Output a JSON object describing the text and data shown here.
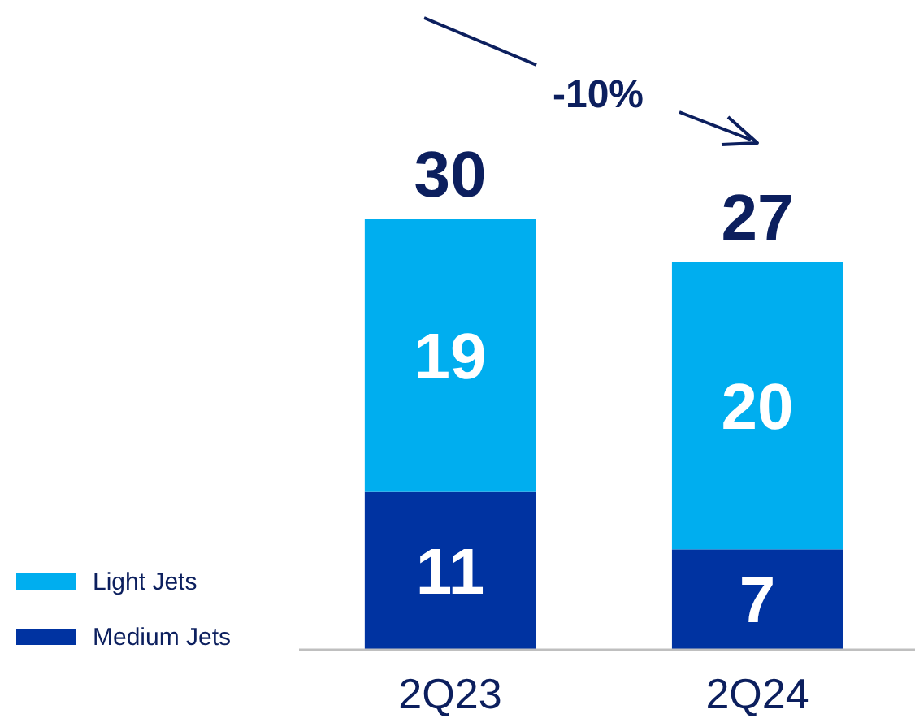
{
  "chart_data": {
    "type": "bar",
    "stacked": true,
    "categories": [
      "2Q23",
      "2Q24"
    ],
    "series": [
      {
        "name": "Medium Jets",
        "color": "#0033a1",
        "values": [
          11,
          7
        ]
      },
      {
        "name": "Light Jets",
        "color": "#00aeef",
        "values": [
          19,
          20
        ]
      }
    ],
    "data_labels": true,
    "totals": [
      "30",
      "27"
    ],
    "legend": "bottom left",
    "annotations": [
      "-10%"
    ]
  }
}
